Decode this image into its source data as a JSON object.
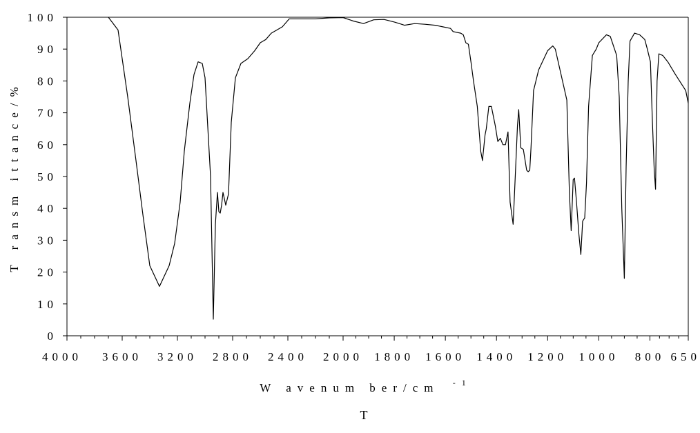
{
  "chart_data": {
    "type": "line",
    "title": "",
    "xlabel": "W avenum ber/cm",
    "xlabel_superscript": "-1",
    "ylabel": "T ransm ittance/%",
    "caption": "T",
    "xlim": [
      4000,
      650
    ],
    "ylim": [
      0,
      100
    ],
    "x_reversed": true,
    "x_scale_change_at": 2000,
    "x_ticks": [
      4000,
      3600,
      3200,
      2800,
      2400,
      2000,
      1800,
      1600,
      1400,
      1200,
      1000,
      800,
      650
    ],
    "x_tick_labels": [
      "4000",
      "3600",
      "3200",
      "2800",
      "2400",
      "2000",
      "1800",
      "1600",
      "1400",
      "1200",
      "1000",
      "800",
      "650"
    ],
    "y_ticks": [
      0,
      10,
      20,
      30,
      40,
      50,
      60,
      70,
      80,
      90,
      100
    ],
    "y_tick_labels": [
      "0",
      "10",
      "20",
      "30",
      "40",
      "50",
      "60",
      "70",
      "80",
      "90",
      "100"
    ],
    "grid": false,
    "line_color": "#000000",
    "series": [
      {
        "x": [
          3700,
          3630,
          3560,
          3500,
          3450,
          3400,
          3330,
          3260,
          3220,
          3180,
          3150,
          3110,
          3080,
          3050,
          3020,
          3000,
          2960,
          2940,
          2925,
          2910,
          2900,
          2890,
          2880,
          2870,
          2860,
          2850,
          2830,
          2810,
          2780,
          2740,
          2690,
          2640,
          2600,
          2560,
          2520,
          2480,
          2440,
          2400,
          2390,
          2300,
          2200,
          2100,
          2000,
          1960,
          1920,
          1880,
          1840,
          1800,
          1780,
          1760,
          1720,
          1680,
          1640,
          1610,
          1580,
          1570,
          1540,
          1530,
          1520,
          1510,
          1500,
          1490,
          1475,
          1462,
          1455,
          1445,
          1440,
          1430,
          1420,
          1405,
          1395,
          1385,
          1375,
          1365,
          1355,
          1347,
          1335,
          1325,
          1318,
          1313,
          1305,
          1295,
          1282,
          1276,
          1270,
          1265,
          1255,
          1235,
          1200,
          1180,
          1170,
          1125,
          1115,
          1108,
          1100,
          1095,
          1087,
          1078,
          1070,
          1063,
          1055,
          1048,
          1040,
          1025,
          1010,
          1000,
          970,
          955,
          930,
          920,
          910,
          900,
          893,
          885,
          878,
          860,
          840,
          820,
          810,
          798,
          790,
          783,
          778,
          772,
          765,
          750,
          730,
          700,
          660,
          650
        ],
        "y": [
          100,
          96,
          75,
          55,
          38,
          22,
          15.5,
          22,
          29,
          42,
          58,
          73,
          82,
          86,
          85.5,
          81,
          50,
          5.2,
          35,
          45,
          39,
          38.5,
          41,
          45,
          43,
          41,
          44.5,
          67,
          81,
          85.5,
          87,
          89.5,
          92,
          93,
          95,
          96,
          97,
          99,
          99.5,
          99.5,
          99.5,
          99.8,
          99.9,
          98.8,
          98,
          99.2,
          99.3,
          98.5,
          98,
          97.5,
          98,
          97.8,
          97.5,
          97,
          96.5,
          95.5,
          95,
          94.5,
          92,
          91.5,
          86,
          80,
          72,
          58,
          55,
          63,
          65,
          72,
          72,
          66,
          61,
          62,
          60,
          60,
          64,
          42,
          35,
          53,
          66,
          71,
          59,
          58.5,
          52,
          51.5,
          52,
          59,
          77,
          83.5,
          89.5,
          91,
          90,
          74,
          45,
          33,
          49,
          49.5,
          42,
          32,
          25.5,
          36,
          37,
          48,
          72,
          88,
          90,
          92,
          94.5,
          94,
          88,
          75,
          40,
          18,
          53,
          80,
          92.5,
          95,
          94.5,
          93,
          90,
          86,
          67,
          52,
          46,
          80,
          88.5,
          88,
          86,
          82,
          77,
          73
        ]
      }
    ]
  }
}
